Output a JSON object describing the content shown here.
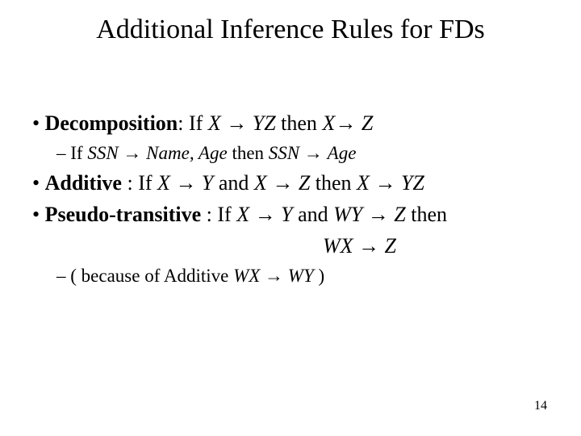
{
  "title": "Additional Inference Rules for FDs",
  "rules": {
    "decomposition": {
      "label": "Decomposition",
      "sep": ": ",
      "pre": "If ",
      "lhs1": "X",
      "arr1": " → ",
      "rhs1": "YZ",
      "mid": "  then  ",
      "lhs2": "X",
      "arr2": "→ ",
      "rhs2": "Z"
    },
    "decomposition_ex": {
      "pre": "If  ",
      "lhs1": "SSN",
      "arr1": " → ",
      "rhs1": "Name, Age",
      "mid": "  then ",
      "lhs2": "SSN",
      "arr2": " → ",
      "rhs2": "Age"
    },
    "additive": {
      "label": "Additive",
      "sep": " : ",
      "pre": "If ",
      "lhs1": "X",
      "arr1": " → ",
      "rhs1": "Y",
      "mid1": "  and ",
      "lhs2": "X",
      "arr2": " → ",
      "rhs2": "Z",
      "mid2": " then  ",
      "lhs3": "X",
      "arr3": " → ",
      "rhs3": "YZ"
    },
    "pseudo": {
      "label": "Pseudo-transitive",
      "sep": " : ",
      "pre": "If ",
      "lhs1": "X",
      "arr1": " → ",
      "rhs1": "Y",
      "mid1": "  and ",
      "lhs2": "WY",
      "arr2": " → ",
      "rhs2": "Z",
      "mid2": " then"
    },
    "pseudo_cont": {
      "lhs": "WX",
      "arr": " → ",
      "rhs": "Z"
    },
    "pseudo_ex": {
      "pre": "( because of Additive ",
      "lhs": "WX",
      "arr": " → ",
      "rhs": "WY",
      "post": " )"
    }
  },
  "page_number": "14",
  "colors": {
    "background": "#ffffff",
    "text": "#000000"
  }
}
